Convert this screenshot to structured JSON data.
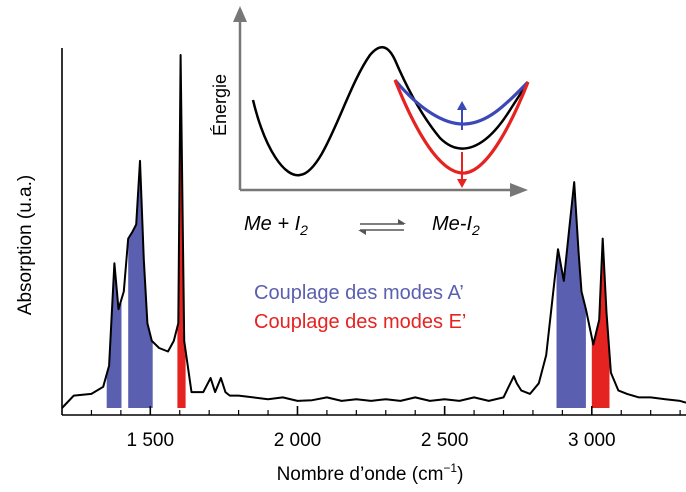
{
  "chart_data": {
    "type": "line",
    "title": "",
    "xlabel": "Nombre d’onde (cm",
    "xlabel_sup": "−1",
    "xlabel_end": ")",
    "ylabel": "Absorption (u.a.)",
    "xlim": [
      1200,
      3320
    ],
    "x_ticks": [
      1500,
      2000,
      2500,
      3000
    ],
    "x_tick_labels": [
      "1 500",
      "2 000",
      "2 500",
      "3 000"
    ],
    "grid": false,
    "colors": {
      "line": "#000000",
      "mode_A": "#5b5fb0",
      "mode_E": "#e52321"
    },
    "spectrum": {
      "x": [
        1200,
        1240,
        1300,
        1340,
        1360,
        1378,
        1392,
        1410,
        1425,
        1440,
        1452,
        1465,
        1478,
        1490,
        1505,
        1530,
        1560,
        1580,
        1595,
        1603,
        1615,
        1640,
        1680,
        1705,
        1720,
        1740,
        1755,
        1770,
        1800,
        1850,
        1900,
        1950,
        2000,
        2050,
        2100,
        2150,
        2200,
        2250,
        2300,
        2350,
        2400,
        2450,
        2500,
        2550,
        2600,
        2650,
        2700,
        2735,
        2745,
        2760,
        2790,
        2820,
        2845,
        2865,
        2885,
        2905,
        2925,
        2940,
        2955,
        2965,
        2980,
        2995,
        3005,
        3025,
        3037,
        3050,
        3065,
        3090,
        3120,
        3160,
        3200,
        3250,
        3300,
        3320
      ],
      "y": [
        0.0,
        0.035,
        0.04,
        0.06,
        0.12,
        0.41,
        0.28,
        0.33,
        0.48,
        0.5,
        0.52,
        0.7,
        0.42,
        0.24,
        0.19,
        0.17,
        0.16,
        0.19,
        0.24,
        1.0,
        0.19,
        0.045,
        0.045,
        0.085,
        0.045,
        0.085,
        0.045,
        0.035,
        0.035,
        0.03,
        0.025,
        0.03,
        0.02,
        0.022,
        0.03,
        0.02,
        0.025,
        0.02,
        0.025,
        0.02,
        0.03,
        0.02,
        0.025,
        0.02,
        0.03,
        0.02,
        0.03,
        0.09,
        0.07,
        0.05,
        0.04,
        0.07,
        0.15,
        0.3,
        0.45,
        0.36,
        0.52,
        0.64,
        0.44,
        0.33,
        0.28,
        0.22,
        0.18,
        0.25,
        0.48,
        0.27,
        0.1,
        0.05,
        0.04,
        0.03,
        0.03,
        0.025,
        0.02,
        0.015
      ]
    },
    "highlighted_bands": [
      {
        "mode": "A",
        "x_start": 1352,
        "x_end": 1402
      },
      {
        "mode": "A",
        "x_start": 1425,
        "x_end": 1508
      },
      {
        "mode": "E",
        "x_start": 1592,
        "x_end": 1620
      },
      {
        "mode": "A",
        "x_start": 2880,
        "x_end": 2980
      },
      {
        "mode": "E",
        "x_start": 3000,
        "x_end": 3060
      }
    ],
    "legend": [
      {
        "label": "Couplage des modes A’",
        "mode": "A"
      },
      {
        "label": "Couplage des modes E’",
        "mode": "E"
      }
    ],
    "legend_position": "center-right",
    "inset": {
      "ylabel": "Énergie",
      "left_species": "Me + I",
      "left_sub": "2",
      "right_species": "Me-I",
      "right_sub": "2",
      "arrows": [
        "up",
        "down"
      ]
    }
  }
}
